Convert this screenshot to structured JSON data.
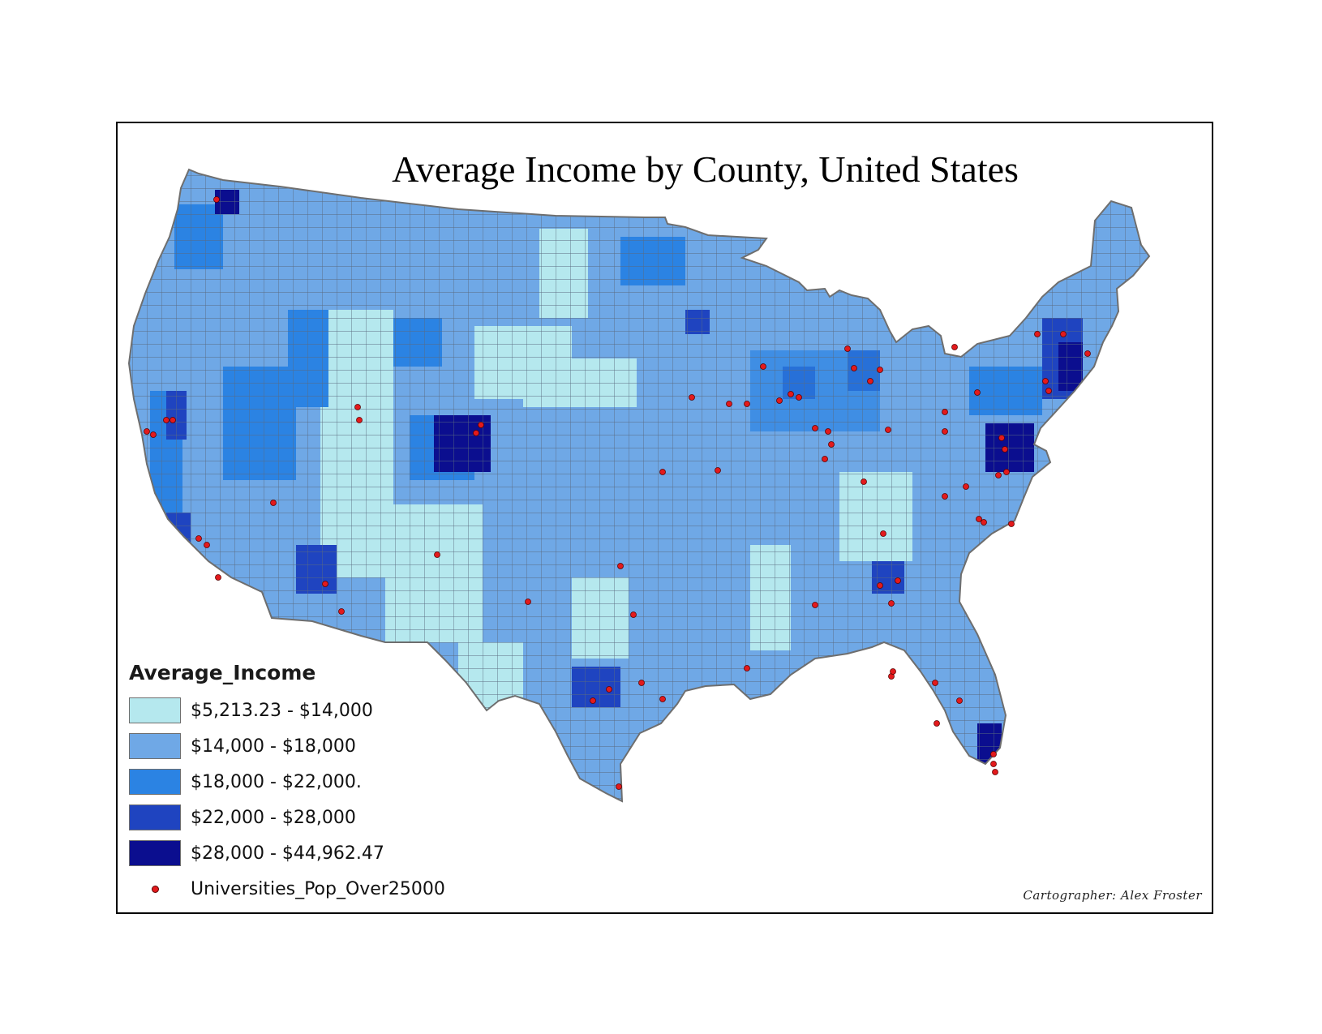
{
  "title": "Average Income by County, United States",
  "legend": {
    "title": "Average_Income",
    "classes": [
      {
        "label": "$5,213.23 - $14,000",
        "color": "#b5e8ee"
      },
      {
        "label": "$14,000 - $18,000",
        "color": "#6fa8e6"
      },
      {
        "label": "$18,000 - $22,000.",
        "color": "#2b83e3"
      },
      {
        "label": "$22,000 - $28,000",
        "color": "#1f44c0"
      },
      {
        "label": "$28,000 - $44,962.47",
        "color": "#0b0e8f"
      }
    ],
    "point_layer": {
      "label": "Universities_Pop_Over25000",
      "color": "#e31a1c"
    }
  },
  "credit": "Cartographer: Alex Froster",
  "colors": {
    "county_border": "#5a6a80",
    "outline": "#6e6e6e"
  }
}
